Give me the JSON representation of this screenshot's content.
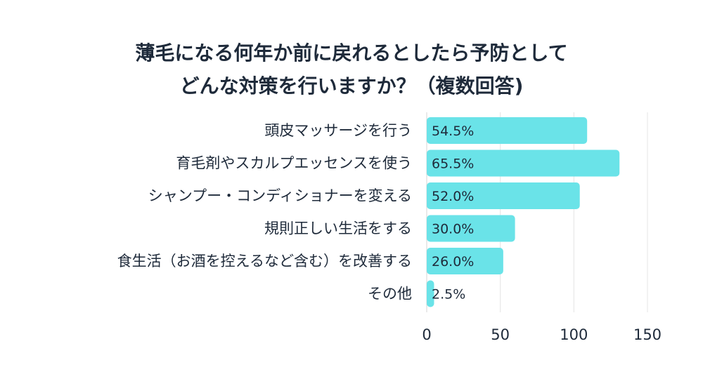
{
  "chart_data": {
    "type": "bar",
    "orientation": "horizontal",
    "title": [
      "薄毛になる何年か前に戻れるとしたら予防として",
      "どんな対策を行いますか？（複数回答)"
    ],
    "categories": [
      "頭皮マッサージを行う",
      "育毛剤やスカルプエッセンスを使う",
      "シャンプー・コンディショナーを変える",
      "規則正しい生活をする",
      "食生活（お酒を控えるなど含む）を改善する",
      "その他"
    ],
    "values": [
      109,
      131,
      104,
      60,
      52,
      5
    ],
    "data_labels": [
      "54.5%",
      "65.5%",
      "52.0%",
      "30.0%",
      "26.0%",
      "2.5%"
    ],
    "xlim": [
      0,
      150
    ],
    "xticks": [
      "0",
      "50",
      "100",
      "150"
    ],
    "grid": true,
    "bar_color": "#6ae3e8",
    "grid_color": "#e4e4e4"
  }
}
